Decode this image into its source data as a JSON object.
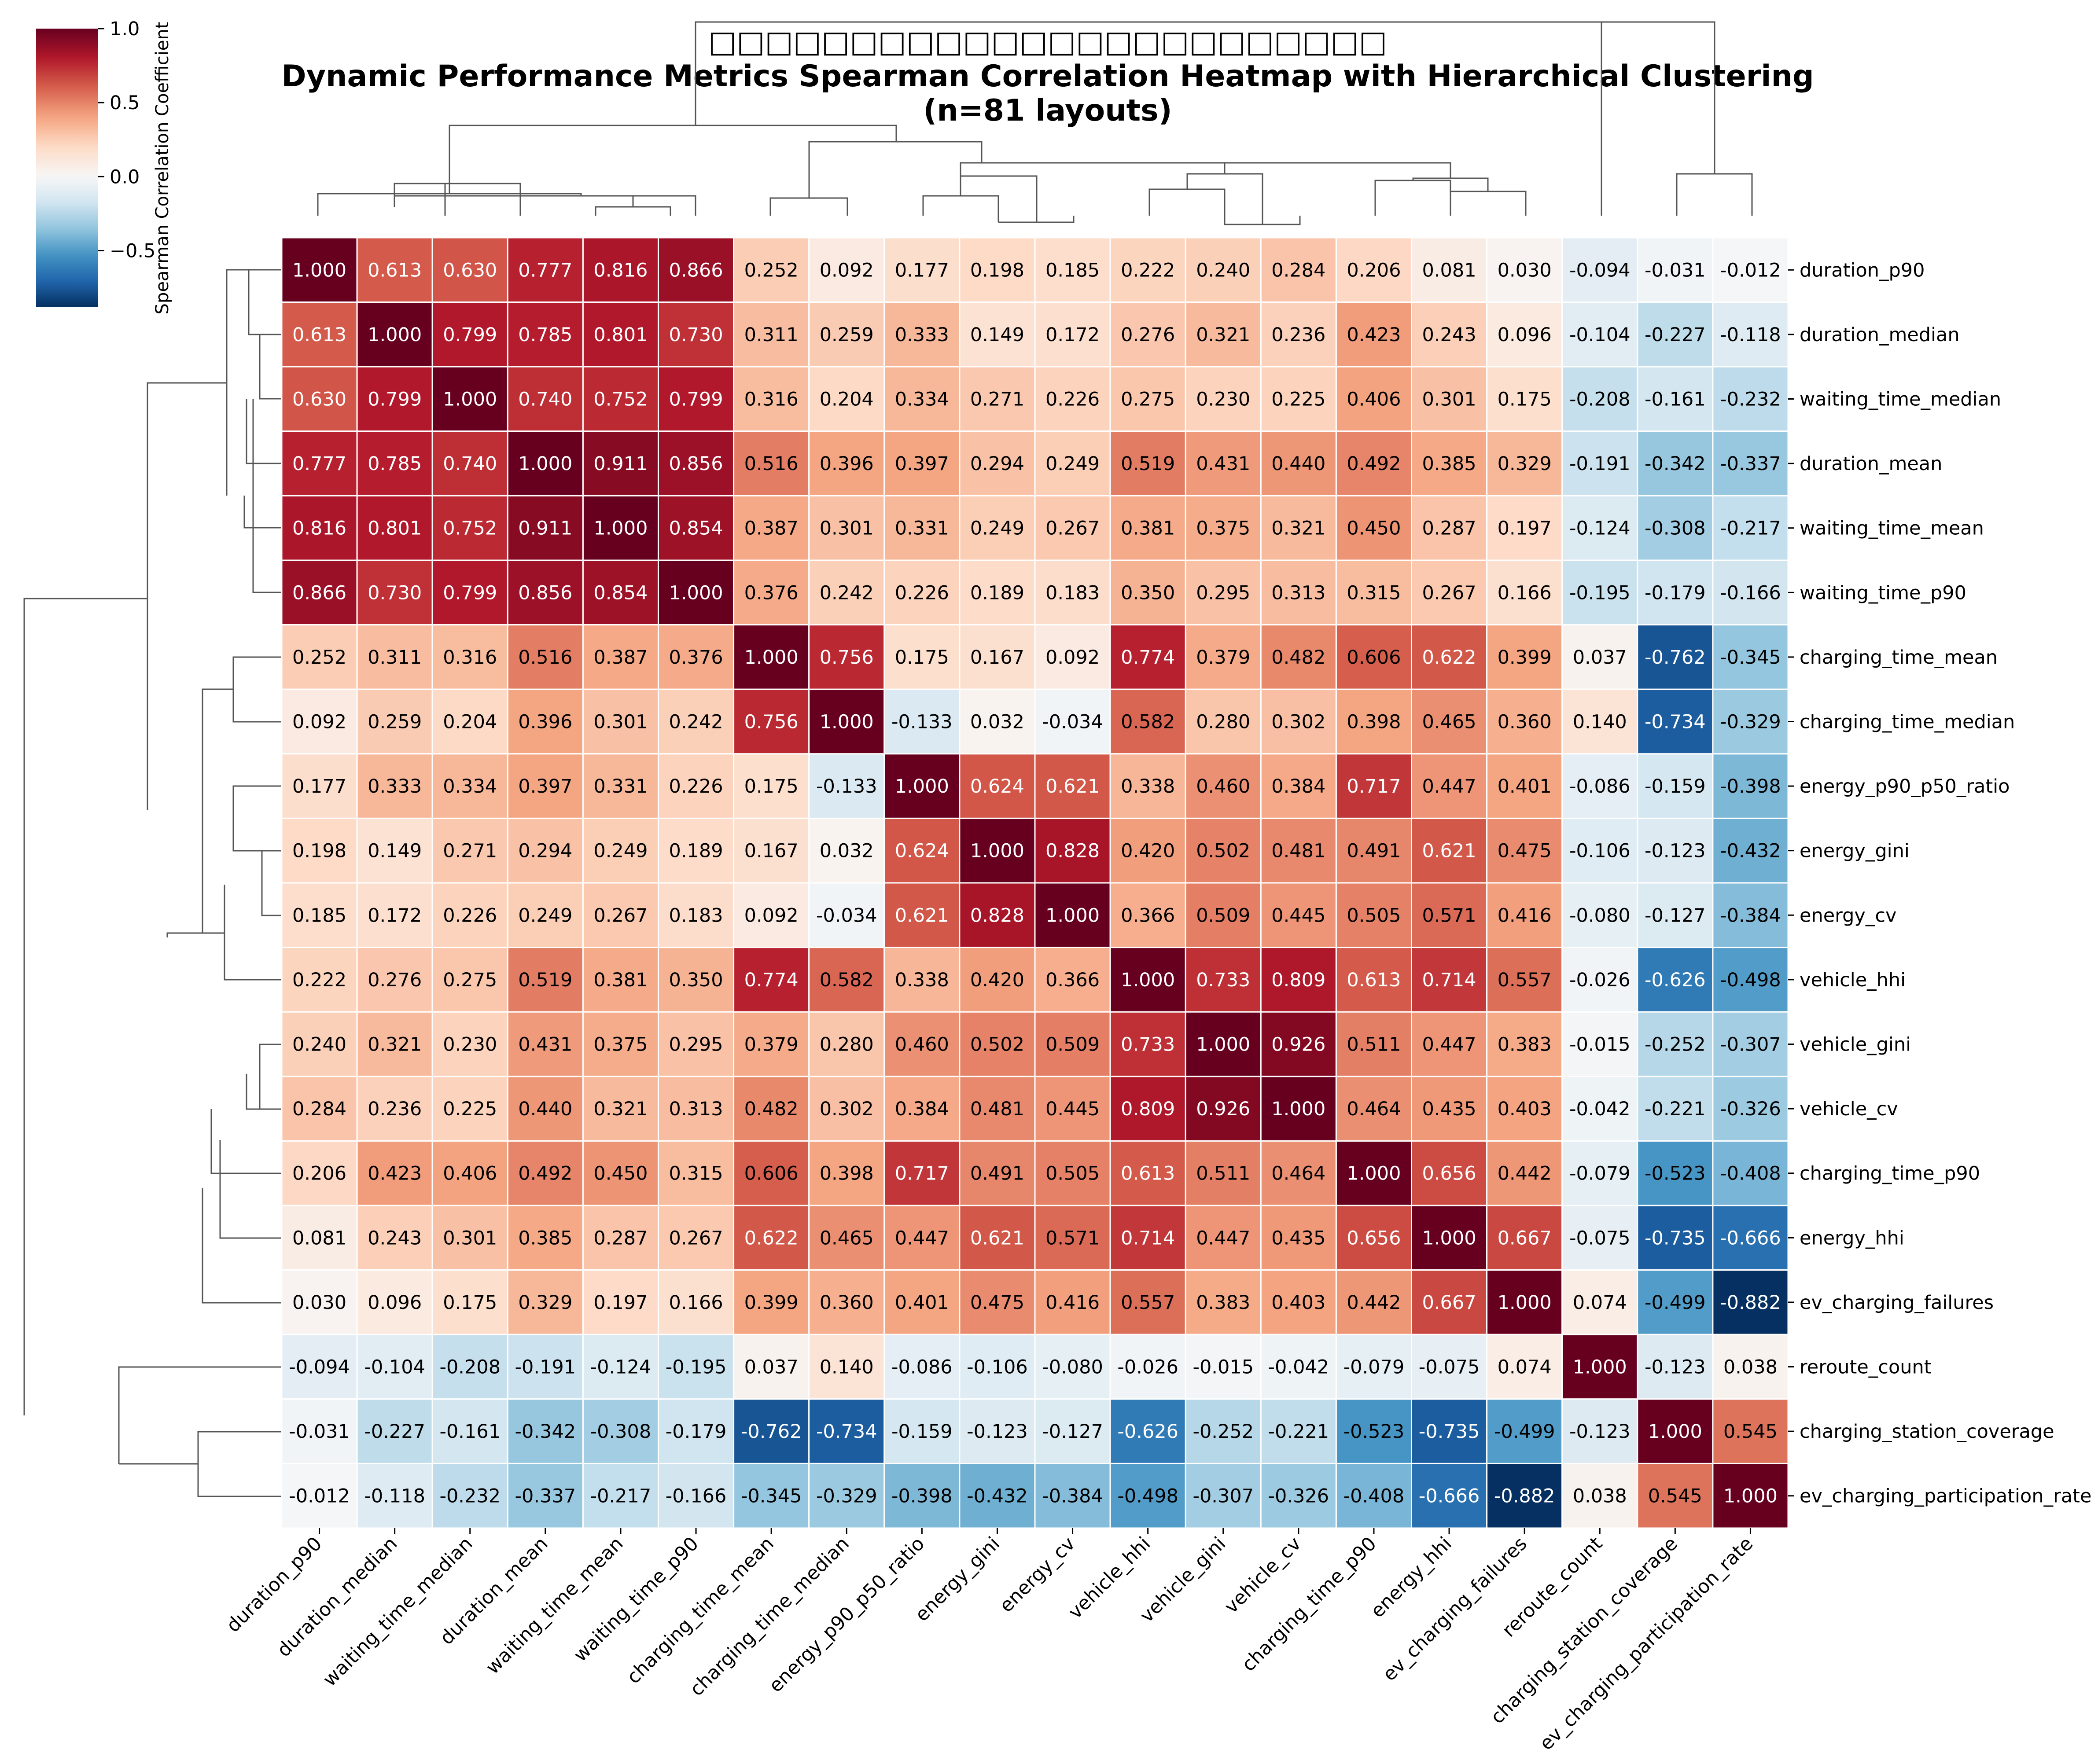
{
  "chart_data": {
    "type": "heatmap",
    "title_lines": [
      "□□□□□□□□□□□□□□□□□□□□□□□□",
      "Dynamic Performance Metrics Spearman Correlation Heatmap with Hierarchical Clustering",
      "(n=81 layouts)"
    ],
    "labels": [
      "duration_p90",
      "duration_median",
      "waiting_time_median",
      "duration_mean",
      "waiting_time_mean",
      "waiting_time_p90",
      "charging_time_mean",
      "charging_time_median",
      "energy_p90_p50_ratio",
      "energy_gini",
      "energy_cv",
      "vehicle_hhi",
      "vehicle_gini",
      "vehicle_cv",
      "charging_time_p90",
      "energy_hhi",
      "ev_charging_failures",
      "reroute_count",
      "charging_station_coverage",
      "ev_charging_participation_rate"
    ],
    "matrix": [
      [
        1.0,
        0.613,
        0.63,
        0.777,
        0.816,
        0.866,
        0.252,
        0.092,
        0.177,
        0.198,
        0.185,
        0.222,
        0.24,
        0.284,
        0.206,
        0.081,
        0.03,
        -0.094,
        -0.031,
        -0.012
      ],
      [
        0.613,
        1.0,
        0.799,
        0.785,
        0.801,
        0.73,
        0.311,
        0.259,
        0.333,
        0.149,
        0.172,
        0.276,
        0.321,
        0.236,
        0.423,
        0.243,
        0.096,
        -0.104,
        -0.227,
        -0.118
      ],
      [
        0.63,
        0.799,
        1.0,
        0.74,
        0.752,
        0.799,
        0.316,
        0.204,
        0.334,
        0.271,
        0.226,
        0.275,
        0.23,
        0.225,
        0.406,
        0.301,
        0.175,
        -0.208,
        -0.161,
        -0.232
      ],
      [
        0.777,
        0.785,
        0.74,
        1.0,
        0.911,
        0.856,
        0.516,
        0.396,
        0.397,
        0.294,
        0.249,
        0.519,
        0.431,
        0.44,
        0.492,
        0.385,
        0.329,
        -0.191,
        -0.342,
        -0.337
      ],
      [
        0.816,
        0.801,
        0.752,
        0.911,
        1.0,
        0.854,
        0.387,
        0.301,
        0.331,
        0.249,
        0.267,
        0.381,
        0.375,
        0.321,
        0.45,
        0.287,
        0.197,
        -0.124,
        -0.308,
        -0.217
      ],
      [
        0.866,
        0.73,
        0.799,
        0.856,
        0.854,
        1.0,
        0.376,
        0.242,
        0.226,
        0.189,
        0.183,
        0.35,
        0.295,
        0.313,
        0.315,
        0.267,
        0.166,
        -0.195,
        -0.179,
        -0.166
      ],
      [
        0.252,
        0.311,
        0.316,
        0.516,
        0.387,
        0.376,
        1.0,
        0.756,
        0.175,
        0.167,
        0.092,
        0.774,
        0.379,
        0.482,
        0.606,
        0.622,
        0.399,
        0.037,
        -0.762,
        -0.345
      ],
      [
        0.092,
        0.259,
        0.204,
        0.396,
        0.301,
        0.242,
        0.756,
        1.0,
        -0.133,
        0.032,
        -0.034,
        0.582,
        0.28,
        0.302,
        0.398,
        0.465,
        0.36,
        0.14,
        -0.734,
        -0.329
      ],
      [
        0.177,
        0.333,
        0.334,
        0.397,
        0.331,
        0.226,
        0.175,
        -0.133,
        1.0,
        0.624,
        0.621,
        0.338,
        0.46,
        0.384,
        0.717,
        0.447,
        0.401,
        -0.086,
        -0.159,
        -0.398
      ],
      [
        0.198,
        0.149,
        0.271,
        0.294,
        0.249,
        0.189,
        0.167,
        0.032,
        0.624,
        1.0,
        0.828,
        0.42,
        0.502,
        0.481,
        0.491,
        0.621,
        0.475,
        -0.106,
        -0.123,
        -0.432
      ],
      [
        0.185,
        0.172,
        0.226,
        0.249,
        0.267,
        0.183,
        0.092,
        -0.034,
        0.621,
        0.828,
        1.0,
        0.366,
        0.509,
        0.445,
        0.505,
        0.571,
        0.416,
        -0.08,
        -0.127,
        -0.384
      ],
      [
        0.222,
        0.276,
        0.275,
        0.519,
        0.381,
        0.35,
        0.774,
        0.582,
        0.338,
        0.42,
        0.366,
        1.0,
        0.733,
        0.809,
        0.613,
        0.714,
        0.557,
        -0.026,
        -0.626,
        -0.498
      ],
      [
        0.24,
        0.321,
        0.23,
        0.431,
        0.375,
        0.295,
        0.379,
        0.28,
        0.46,
        0.502,
        0.509,
        0.733,
        1.0,
        0.926,
        0.511,
        0.447,
        0.383,
        -0.015,
        -0.252,
        -0.307
      ],
      [
        0.284,
        0.236,
        0.225,
        0.44,
        0.321,
        0.313,
        0.482,
        0.302,
        0.384,
        0.481,
        0.445,
        0.809,
        0.926,
        1.0,
        0.464,
        0.435,
        0.403,
        -0.042,
        -0.221,
        -0.326
      ],
      [
        0.206,
        0.423,
        0.406,
        0.492,
        0.45,
        0.315,
        0.606,
        0.398,
        0.717,
        0.491,
        0.505,
        0.613,
        0.511,
        0.464,
        1.0,
        0.656,
        0.442,
        -0.079,
        -0.523,
        -0.408
      ],
      [
        0.081,
        0.243,
        0.301,
        0.385,
        0.287,
        0.267,
        0.622,
        0.465,
        0.447,
        0.621,
        0.571,
        0.714,
        0.447,
        0.435,
        0.656,
        1.0,
        0.667,
        -0.075,
        -0.735,
        -0.666
      ],
      [
        0.03,
        0.096,
        0.175,
        0.329,
        0.197,
        0.166,
        0.399,
        0.36,
        0.401,
        0.475,
        0.416,
        0.557,
        0.383,
        0.403,
        0.442,
        0.667,
        1.0,
        0.074,
        -0.499,
        -0.882
      ],
      [
        -0.094,
        -0.104,
        -0.208,
        -0.191,
        -0.124,
        -0.195,
        0.037,
        0.14,
        -0.086,
        -0.106,
        -0.08,
        -0.026,
        -0.015,
        -0.042,
        -0.079,
        -0.075,
        0.074,
        1.0,
        -0.123,
        0.038
      ],
      [
        -0.031,
        -0.227,
        -0.161,
        -0.342,
        -0.308,
        -0.179,
        -0.762,
        -0.734,
        -0.159,
        -0.123,
        -0.127,
        -0.626,
        -0.252,
        -0.221,
        -0.523,
        -0.735,
        -0.499,
        -0.123,
        1.0,
        0.545
      ],
      [
        -0.012,
        -0.118,
        -0.232,
        -0.337,
        -0.217,
        -0.166,
        -0.345,
        -0.329,
        -0.398,
        -0.432,
        -0.384,
        -0.498,
        -0.307,
        -0.326,
        -0.408,
        -0.666,
        -0.882,
        0.038,
        0.545,
        1.0
      ]
    ],
    "colorbar": {
      "label": "Spearman Correlation Coefficient",
      "range": [
        -0.882,
        1.0
      ],
      "ticks": [
        "1.0",
        "0.5",
        "0.0",
        "−0.5"
      ],
      "tick_values": [
        1.0,
        0.5,
        0.0,
        -0.5
      ],
      "colormap": "RdBu_r"
    },
    "colormap_stops": [
      "#053061",
      "#2166ac",
      "#4393c3",
      "#92c5de",
      "#d1e5f0",
      "#f7f7f7",
      "#fddbc7",
      "#f4a582",
      "#d6604d",
      "#b2182b",
      "#67001f"
    ]
  }
}
